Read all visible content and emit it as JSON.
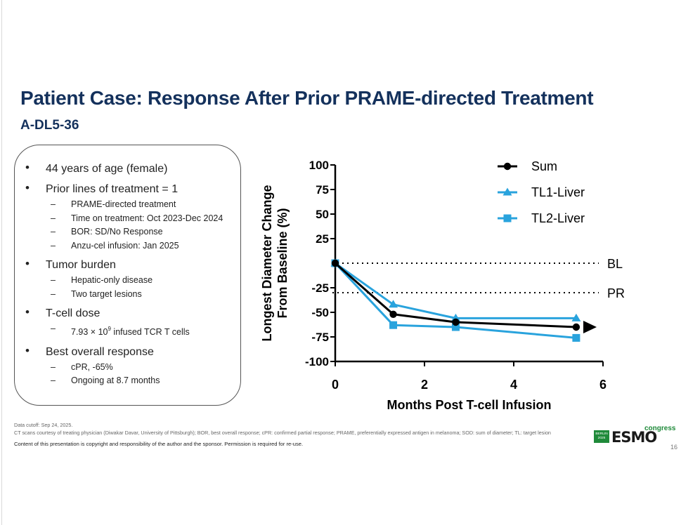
{
  "slide": {
    "title": "Patient Case: Response After Prior PRAME-directed Treatment",
    "subtitle": "A-DL5-36",
    "page_number": "16"
  },
  "case_summary": {
    "age": "44 years of age (female)",
    "prior_lines": "Prior lines of treatment = 1",
    "prior_details": [
      "PRAME-directed treatment",
      "Time on treatment: Oct 2023-Dec 2024",
      "BOR: SD/No Response",
      "Anzu-cel infusion: Jan 2025"
    ],
    "tumor_burden": "Tumor burden",
    "tumor_details": [
      "Hepatic-only disease",
      "Two target lesions"
    ],
    "tcell_dose": "T-cell dose",
    "dose_prefix": "7.93 × 10",
    "dose_exponent": "9",
    "dose_suffix": " infused TCR T cells",
    "best_response": "Best overall response",
    "response_details": [
      "cPR, -65%",
      "Ongoing at 8.7 months"
    ]
  },
  "footnotes": {
    "cutoff": "Data cutoff: Sep 24, 2025.",
    "abbreviations": "CT scans courtesy of treating physician (Diwakar Davar, University of Pittsburgh); BOR, best overall response; cPR: confirmed partial response; PRAME, preferentially expressed antigen in melanoma; SOD: sum of diameter; TL: target lesion",
    "copyright": "Content of this presentation is copyright and responsibility of the author and the sponsor. Permission is required for re-use."
  },
  "logo": {
    "city_year": "BERLIN 2025",
    "brand": "ESMO",
    "suffix": "congress"
  },
  "chart_data": {
    "type": "line",
    "xlabel": "Months Post T-cell Infusion",
    "ylabel_lines": [
      "Longest Diameter Change",
      "From Baseline (%)"
    ],
    "xlim": [
      0,
      6
    ],
    "ylim": [
      -100,
      100
    ],
    "xticks": [
      0,
      2,
      4,
      6
    ],
    "yticks": [
      100,
      75,
      50,
      25,
      -25,
      -50,
      -75,
      -100
    ],
    "series": [
      {
        "name": "Sum",
        "marker": "circle",
        "color": "#000000",
        "x": [
          0,
          1.3,
          2.7,
          5.4
        ],
        "y": [
          0,
          -52,
          -60,
          -65
        ]
      },
      {
        "name": "TL1-Liver",
        "marker": "triangle",
        "color": "#29a3dd",
        "x": [
          0,
          1.3,
          2.7,
          5.4
        ],
        "y": [
          0,
          -42,
          -56,
          -56
        ]
      },
      {
        "name": "TL2-Liver",
        "marker": "square",
        "color": "#29a3dd",
        "x": [
          0,
          1.3,
          2.7,
          5.4
        ],
        "y": [
          0,
          -63,
          -65,
          -76
        ]
      }
    ],
    "reference_lines": [
      {
        "label": "BL",
        "y": 0
      },
      {
        "label": "PR",
        "y": -30
      }
    ],
    "ongoing_arrow_y": -65,
    "legend_position": "top-right"
  }
}
